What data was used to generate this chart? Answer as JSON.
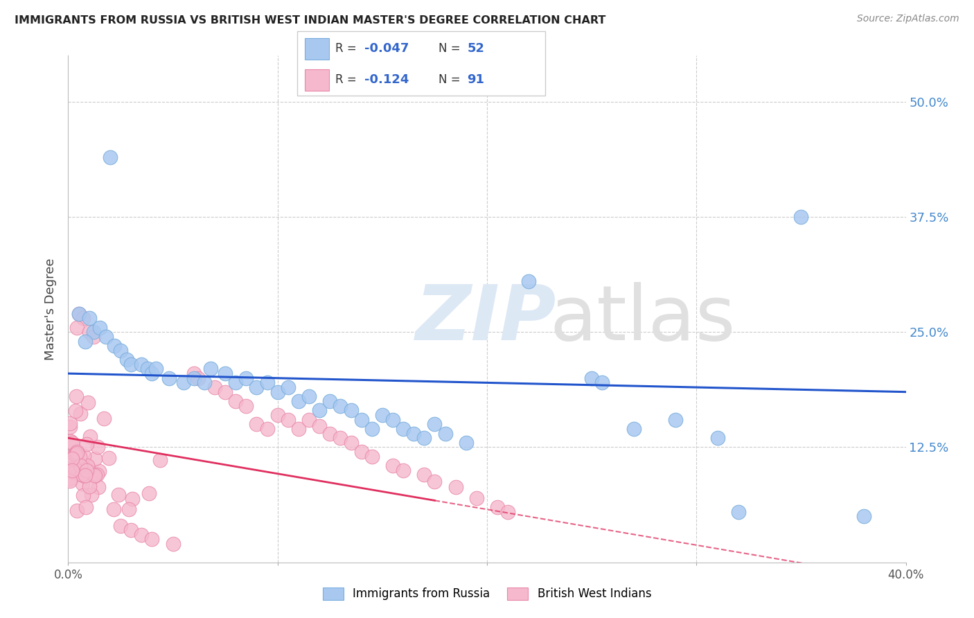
{
  "title": "IMMIGRANTS FROM RUSSIA VS BRITISH WEST INDIAN MASTER'S DEGREE CORRELATION CHART",
  "source": "Source: ZipAtlas.com",
  "ylabel": "Master's Degree",
  "xlim": [
    0.0,
    0.4
  ],
  "ylim": [
    0.0,
    0.55
  ],
  "ytick_positions": [
    0.125,
    0.25,
    0.375,
    0.5
  ],
  "ytick_labels": [
    "12.5%",
    "25.0%",
    "37.5%",
    "50.0%"
  ],
  "blue_color": "#a8c8f0",
  "blue_edge": "#7aaedd",
  "pink_color": "#f5b8cc",
  "pink_edge": "#e888a8",
  "trendline_blue": "#2255cc",
  "trendline_pink": "#e03060",
  "blue_r": "-0.047",
  "blue_n": "52",
  "pink_r": "-0.124",
  "pink_n": "91",
  "legend_text_color": "#3366cc",
  "legend_rn_color": "#3366cc",
  "legend_r_value_color": "#3366cc",
  "watermark_zip_color": "#dde8f5",
  "watermark_atlas_color": "#e0e0e0"
}
